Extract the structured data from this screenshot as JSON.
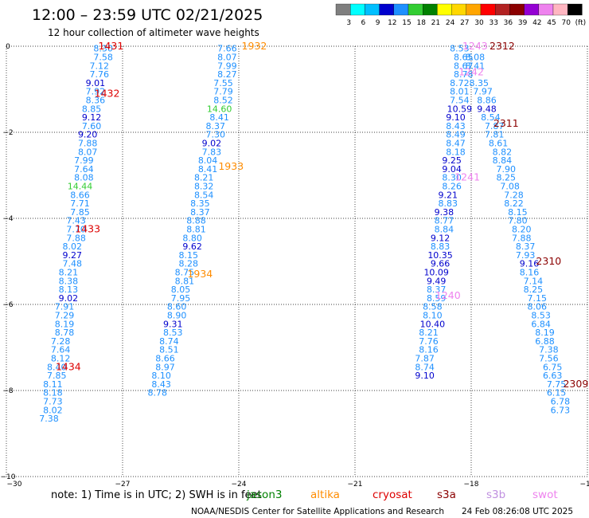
{
  "header": {
    "title": "12:00 – 23:59 UTC 02/21/2025",
    "subtitle": "12 hour collection of altimeter wave heights"
  },
  "colorbar": {
    "labels": [
      "3",
      "6",
      "9",
      "12",
      "15",
      "18",
      "21",
      "24",
      "27",
      "30",
      "33",
      "36",
      "39",
      "42",
      "45",
      "70",
      "(ft)"
    ],
    "colors": [
      "#7f7f7f",
      "#00ffff",
      "#00bfff",
      "#0000cd",
      "#1e90ff",
      "#32cd32",
      "#008000",
      "#ffff00",
      "#ffd700",
      "#ffa500",
      "#ff0000",
      "#b22222",
      "#8b0000",
      "#9400d3",
      "#ee82ee",
      "#ffb6c1",
      "#000000"
    ]
  },
  "footer": {
    "note": "note:  1) Time is in UTC; 2) SWH is in feet",
    "satellites": [
      {
        "name": "jason3",
        "color": "#008000"
      },
      {
        "name": "altika",
        "color": "#ff8c00"
      },
      {
        "name": "cryosat",
        "color": "#dd0000"
      },
      {
        "name": "s3a",
        "color": "#8b0000"
      },
      {
        "name": "s3b",
        "color": "#c090e0"
      },
      {
        "name": "swot",
        "color": "#ee82ee"
      }
    ],
    "credit": "NOAA/NESDIS Center for Satellite Applications and Research",
    "timestamp": "24 Feb 08:26:08 UTC 2025"
  },
  "chart_data": {
    "type": "scatter",
    "title": "12:00 – 23:59 UTC 02/21/2025",
    "subtitle": "12 hour collection of altimeter wave heights",
    "xlim": [
      -30,
      -15
    ],
    "ylim": [
      -10,
      0
    ],
    "x_ticks": [
      "−30",
      "−27",
      "−24",
      "−21",
      "−18",
      "−15"
    ],
    "y_ticks": [
      "0",
      "−2",
      "−4",
      "−6",
      "−8",
      "−10"
    ],
    "grid": true,
    "colors": {
      "swh_8_9": "#1e90ff",
      "swh_9_12": "#0000cd",
      "swh_12_15": "#32cd32"
    },
    "tracks": [
      {
        "name": "track1",
        "points": [
          {
            "x": -27.5,
            "y": -0.05,
            "v": "8.30"
          },
          {
            "x": -27.5,
            "y": -0.25,
            "v": "7.58"
          },
          {
            "x": -27.6,
            "y": -0.45,
            "v": "7.12"
          },
          {
            "x": -27.6,
            "y": -0.65,
            "v": "7.76"
          },
          {
            "x": -27.7,
            "y": -0.85,
            "v": "9.01"
          },
          {
            "x": -27.7,
            "y": -1.05,
            "v": "7.92"
          },
          {
            "x": -27.7,
            "y": -1.25,
            "v": "8.36"
          },
          {
            "x": -27.8,
            "y": -1.45,
            "v": "8.85"
          },
          {
            "x": -27.8,
            "y": -1.65,
            "v": "9.12"
          },
          {
            "x": -27.8,
            "y": -1.85,
            "v": "7.60"
          },
          {
            "x": -27.9,
            "y": -2.05,
            "v": "9.20"
          },
          {
            "x": -27.9,
            "y": -2.25,
            "v": "7.88"
          },
          {
            "x": -27.9,
            "y": -2.45,
            "v": "8.07"
          },
          {
            "x": -28.0,
            "y": -2.65,
            "v": "7.99"
          },
          {
            "x": -28.0,
            "y": -2.85,
            "v": "7.64"
          },
          {
            "x": -28.0,
            "y": -3.05,
            "v": "8.08"
          },
          {
            "x": -28.1,
            "y": -3.25,
            "v": "14.44"
          },
          {
            "x": -28.1,
            "y": -3.45,
            "v": "8.66"
          },
          {
            "x": -28.1,
            "y": -3.65,
            "v": "7.71"
          },
          {
            "x": -28.1,
            "y": -3.85,
            "v": "7.85"
          },
          {
            "x": -28.2,
            "y": -4.05,
            "v": "7.43"
          },
          {
            "x": -28.2,
            "y": -4.25,
            "v": "7.70"
          },
          {
            "x": -28.2,
            "y": -4.45,
            "v": "7.88"
          },
          {
            "x": -28.3,
            "y": -4.65,
            "v": "8.02"
          },
          {
            "x": -28.3,
            "y": -4.85,
            "v": "9.27"
          },
          {
            "x": -28.3,
            "y": -5.05,
            "v": "7.48"
          },
          {
            "x": -28.4,
            "y": -5.25,
            "v": "8.21"
          },
          {
            "x": -28.4,
            "y": -5.45,
            "v": "8.38"
          },
          {
            "x": -28.4,
            "y": -5.65,
            "v": "8.13"
          },
          {
            "x": -28.4,
            "y": -5.85,
            "v": "9.02"
          },
          {
            "x": -28.5,
            "y": -6.05,
            "v": "7.91"
          },
          {
            "x": -28.5,
            "y": -6.25,
            "v": "7.29"
          },
          {
            "x": -28.5,
            "y": -6.45,
            "v": "8.19"
          },
          {
            "x": -28.5,
            "y": -6.65,
            "v": "8.78"
          },
          {
            "x": -28.6,
            "y": -6.85,
            "v": "7.28"
          },
          {
            "x": -28.6,
            "y": -7.05,
            "v": "7.64"
          },
          {
            "x": -28.6,
            "y": -7.25,
            "v": "8.12"
          },
          {
            "x": -28.7,
            "y": -7.45,
            "v": "8.40"
          },
          {
            "x": -28.7,
            "y": -7.65,
            "v": "7.85"
          },
          {
            "x": -28.8,
            "y": -7.85,
            "v": "8.11"
          },
          {
            "x": -28.8,
            "y": -8.05,
            "v": "8.18"
          },
          {
            "x": -28.8,
            "y": -8.25,
            "v": "7.73"
          },
          {
            "x": -28.8,
            "y": -8.45,
            "v": "8.02"
          },
          {
            "x": -28.9,
            "y": -8.65,
            "v": "7.38"
          }
        ]
      },
      {
        "name": "track2",
        "points": [
          {
            "x": -24.3,
            "y": -0.05,
            "v": "7.66"
          },
          {
            "x": -24.3,
            "y": -0.25,
            "v": "8.07"
          },
          {
            "x": -24.3,
            "y": -0.45,
            "v": "7.99"
          },
          {
            "x": -24.3,
            "y": -0.65,
            "v": "8.27"
          },
          {
            "x": -24.4,
            "y": -0.85,
            "v": "7.55"
          },
          {
            "x": -24.4,
            "y": -1.05,
            "v": "7.79"
          },
          {
            "x": -24.4,
            "y": -1.25,
            "v": "8.52"
          },
          {
            "x": -24.5,
            "y": -1.45,
            "v": "14.60"
          },
          {
            "x": -24.5,
            "y": -1.65,
            "v": "8.41"
          },
          {
            "x": -24.6,
            "y": -1.85,
            "v": "8.37"
          },
          {
            "x": -24.6,
            "y": -2.05,
            "v": "7.30"
          },
          {
            "x": -24.7,
            "y": -2.25,
            "v": "9.02"
          },
          {
            "x": -24.7,
            "y": -2.45,
            "v": "7.83"
          },
          {
            "x": -24.8,
            "y": -2.65,
            "v": "8.04"
          },
          {
            "x": -24.8,
            "y": -2.85,
            "v": "8.41"
          },
          {
            "x": -24.9,
            "y": -3.05,
            "v": "8.21"
          },
          {
            "x": -24.9,
            "y": -3.25,
            "v": "8.32"
          },
          {
            "x": -24.9,
            "y": -3.45,
            "v": "8.54"
          },
          {
            "x": -25.0,
            "y": -3.65,
            "v": "8.35"
          },
          {
            "x": -25.0,
            "y": -3.85,
            "v": "8.37"
          },
          {
            "x": -25.1,
            "y": -4.05,
            "v": "8.88"
          },
          {
            "x": -25.1,
            "y": -4.25,
            "v": "8.81"
          },
          {
            "x": -25.2,
            "y": -4.45,
            "v": "8.80"
          },
          {
            "x": -25.2,
            "y": -4.65,
            "v": "9.62"
          },
          {
            "x": -25.3,
            "y": -4.85,
            "v": "8.15"
          },
          {
            "x": -25.3,
            "y": -5.05,
            "v": "8.28"
          },
          {
            "x": -25.4,
            "y": -5.25,
            "v": "8.75"
          },
          {
            "x": -25.4,
            "y": -5.45,
            "v": "8.81"
          },
          {
            "x": -25.5,
            "y": -5.65,
            "v": "8.05"
          },
          {
            "x": -25.5,
            "y": -5.85,
            "v": "7.95"
          },
          {
            "x": -25.6,
            "y": -6.05,
            "v": "8.60"
          },
          {
            "x": -25.6,
            "y": -6.25,
            "v": "8.90"
          },
          {
            "x": -25.7,
            "y": -6.45,
            "v": "9.31"
          },
          {
            "x": -25.7,
            "y": -6.65,
            "v": "8.53"
          },
          {
            "x": -25.8,
            "y": -6.85,
            "v": "8.74"
          },
          {
            "x": -25.8,
            "y": -7.05,
            "v": "8.51"
          },
          {
            "x": -25.9,
            "y": -7.25,
            "v": "8.66"
          },
          {
            "x": -25.9,
            "y": -7.45,
            "v": "8.97"
          },
          {
            "x": -26.0,
            "y": -7.65,
            "v": "8.10"
          },
          {
            "x": -26.0,
            "y": -7.85,
            "v": "8.43"
          },
          {
            "x": -26.1,
            "y": -8.05,
            "v": "8.78"
          }
        ]
      },
      {
        "name": "track3",
        "points": [
          {
            "x": -18.3,
            "y": -0.05,
            "v": "8.53"
          },
          {
            "x": -18.2,
            "y": -0.25,
            "v": "8.65"
          },
          {
            "x": -18.2,
            "y": -0.45,
            "v": "8.67"
          },
          {
            "x": -18.2,
            "y": -0.65,
            "v": "8.78"
          },
          {
            "x": -18.3,
            "y": -0.85,
            "v": "8.72"
          },
          {
            "x": -18.3,
            "y": -1.05,
            "v": "8.01"
          },
          {
            "x": -18.3,
            "y": -1.25,
            "v": "7.54"
          },
          {
            "x": -18.3,
            "y": -1.45,
            "v": "10.59"
          },
          {
            "x": -18.4,
            "y": -1.65,
            "v": "9.10"
          },
          {
            "x": -18.4,
            "y": -1.85,
            "v": "8.43"
          },
          {
            "x": -18.4,
            "y": -2.05,
            "v": "8.49"
          },
          {
            "x": -18.4,
            "y": -2.25,
            "v": "8.47"
          },
          {
            "x": -18.4,
            "y": -2.45,
            "v": "8.18"
          },
          {
            "x": -18.5,
            "y": -2.65,
            "v": "9.25"
          },
          {
            "x": -18.5,
            "y": -2.85,
            "v": "9.04"
          },
          {
            "x": -18.5,
            "y": -3.05,
            "v": "8.30"
          },
          {
            "x": -18.5,
            "y": -3.25,
            "v": "8.26"
          },
          {
            "x": -18.6,
            "y": -3.45,
            "v": "9.21"
          },
          {
            "x": -18.6,
            "y": -3.65,
            "v": "8.83"
          },
          {
            "x": -18.7,
            "y": -3.85,
            "v": "9.38"
          },
          {
            "x": -18.7,
            "y": -4.05,
            "v": "8.77"
          },
          {
            "x": -18.7,
            "y": -4.25,
            "v": "8.84"
          },
          {
            "x": -18.8,
            "y": -4.45,
            "v": "9.12"
          },
          {
            "x": -18.8,
            "y": -4.65,
            "v": "8.83"
          },
          {
            "x": -18.8,
            "y": -4.85,
            "v": "10.35"
          },
          {
            "x": -18.8,
            "y": -5.05,
            "v": "9.66"
          },
          {
            "x": -18.9,
            "y": -5.25,
            "v": "10.09"
          },
          {
            "x": -18.9,
            "y": -5.45,
            "v": "9.49"
          },
          {
            "x": -18.9,
            "y": -5.65,
            "v": "8.37"
          },
          {
            "x": -18.9,
            "y": -5.85,
            "v": "8.59"
          },
          {
            "x": -19.0,
            "y": -6.05,
            "v": "8.58"
          },
          {
            "x": -19.0,
            "y": -6.25,
            "v": "8.10"
          },
          {
            "x": -19.0,
            "y": -6.45,
            "v": "10.40"
          },
          {
            "x": -19.1,
            "y": -6.65,
            "v": "8.21"
          },
          {
            "x": -19.1,
            "y": -6.85,
            "v": "7.76"
          },
          {
            "x": -19.1,
            "y": -7.05,
            "v": "8.16"
          },
          {
            "x": -19.2,
            "y": -7.25,
            "v": "7.87"
          },
          {
            "x": -19.2,
            "y": -7.45,
            "v": "8.74"
          },
          {
            "x": -19.2,
            "y": -7.65,
            "v": "9.10"
          }
        ]
      },
      {
        "name": "track4",
        "points": [
          {
            "x": -17.9,
            "y": -0.25,
            "v": "8.08"
          },
          {
            "x": -17.9,
            "y": -0.45,
            "v": "8.41"
          },
          {
            "x": -17.8,
            "y": -0.85,
            "v": "8.35"
          },
          {
            "x": -17.7,
            "y": -1.05,
            "v": "7.97"
          },
          {
            "x": -17.6,
            "y": -1.25,
            "v": "8.86"
          },
          {
            "x": -17.6,
            "y": -1.45,
            "v": "9.48"
          },
          {
            "x": -17.5,
            "y": -1.65,
            "v": "8.54"
          },
          {
            "x": -17.4,
            "y": -1.85,
            "v": "7.87"
          },
          {
            "x": -17.4,
            "y": -2.05,
            "v": "7.81"
          },
          {
            "x": -17.3,
            "y": -2.25,
            "v": "8.61"
          },
          {
            "x": -17.2,
            "y": -2.45,
            "v": "8.82"
          },
          {
            "x": -17.2,
            "y": -2.65,
            "v": "8.84"
          },
          {
            "x": -17.1,
            "y": -2.85,
            "v": "7.90"
          },
          {
            "x": -17.1,
            "y": -3.05,
            "v": "8.25"
          },
          {
            "x": -17.0,
            "y": -3.25,
            "v": "7.08"
          },
          {
            "x": -16.9,
            "y": -3.45,
            "v": "7.28"
          },
          {
            "x": -16.9,
            "y": -3.65,
            "v": "8.22"
          },
          {
            "x": -16.8,
            "y": -3.85,
            "v": "8.15"
          },
          {
            "x": -16.8,
            "y": -4.05,
            "v": "7.80"
          },
          {
            "x": -16.7,
            "y": -4.25,
            "v": "8.20"
          },
          {
            "x": -16.7,
            "y": -4.45,
            "v": "7.88"
          },
          {
            "x": -16.6,
            "y": -4.65,
            "v": "8.37"
          },
          {
            "x": -16.6,
            "y": -4.85,
            "v": "7.93"
          },
          {
            "x": -16.5,
            "y": -5.05,
            "v": "9.16"
          },
          {
            "x": -16.5,
            "y": -5.25,
            "v": "8.16"
          },
          {
            "x": -16.4,
            "y": -5.45,
            "v": "7.14"
          },
          {
            "x": -16.4,
            "y": -5.65,
            "v": "8.25"
          },
          {
            "x": -16.3,
            "y": -5.85,
            "v": "7.15"
          },
          {
            "x": -16.3,
            "y": -6.05,
            "v": "8.06"
          },
          {
            "x": -16.2,
            "y": -6.25,
            "v": "8.53"
          },
          {
            "x": -16.2,
            "y": -6.45,
            "v": "6.84"
          },
          {
            "x": -16.1,
            "y": -6.65,
            "v": "8.19"
          },
          {
            "x": -16.1,
            "y": -6.85,
            "v": "6.88"
          },
          {
            "x": -16.0,
            "y": -7.05,
            "v": "7.38"
          },
          {
            "x": -16.0,
            "y": -7.25,
            "v": "7.56"
          },
          {
            "x": -15.9,
            "y": -7.45,
            "v": "6.75"
          },
          {
            "x": -15.9,
            "y": -7.65,
            "v": "6.63"
          },
          {
            "x": -15.8,
            "y": -7.85,
            "v": "7.75"
          },
          {
            "x": -15.8,
            "y": -8.05,
            "v": "6.15"
          },
          {
            "x": -15.7,
            "y": -8.25,
            "v": "6.78"
          },
          {
            "x": -15.7,
            "y": -8.45,
            "v": "6.73"
          }
        ]
      }
    ],
    "pass_labels": [
      {
        "x": -27.3,
        "y": 0.0,
        "text": "1431",
        "color": "#dd0000"
      },
      {
        "x": -27.4,
        "y": -1.1,
        "text": "1432",
        "color": "#dd0000"
      },
      {
        "x": -27.9,
        "y": -4.25,
        "text": "1433",
        "color": "#dd0000"
      },
      {
        "x": -28.4,
        "y": -7.45,
        "text": "1434",
        "color": "#dd0000"
      },
      {
        "x": -23.6,
        "y": 0.0,
        "text": "1932",
        "color": "#ff8c00"
      },
      {
        "x": -24.2,
        "y": -2.8,
        "text": "1933",
        "color": "#ff8c00"
      },
      {
        "x": -25.0,
        "y": -5.3,
        "text": "1934",
        "color": "#ff8c00"
      },
      {
        "x": -18.0,
        "y": -0.6,
        "text": "1242",
        "color": "#ee82ee"
      },
      {
        "x": -18.1,
        "y": -3.05,
        "text": "1241",
        "color": "#ee82ee"
      },
      {
        "x": -18.6,
        "y": -5.8,
        "text": "1240",
        "color": "#ee82ee"
      },
      {
        "x": -17.9,
        "y": 0.0,
        "text": "1243",
        "color": "#ee82ee"
      },
      {
        "x": -17.2,
        "y": 0.0,
        "text": "2312",
        "color": "#8b0000"
      },
      {
        "x": -17.1,
        "y": -1.8,
        "text": "2311",
        "color": "#8b0000"
      },
      {
        "x": -16.0,
        "y": -5.0,
        "text": "2310",
        "color": "#8b0000"
      },
      {
        "x": -15.3,
        "y": -7.85,
        "text": "2309",
        "color": "#8b0000"
      }
    ]
  }
}
